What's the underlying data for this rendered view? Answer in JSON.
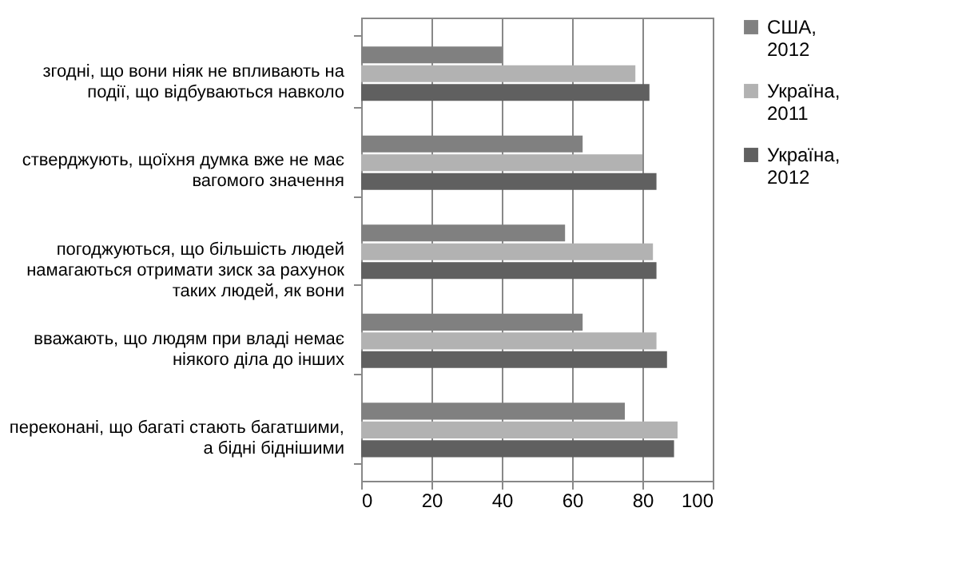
{
  "chart_data": {
    "type": "bar",
    "orientation": "horizontal",
    "categories": [
      "згодні, що вони ніяк не впливають на події, що відбуваються навколо",
      "стверджують,  щоїхня думка вже не має вагомого значення",
      "погоджуються,  що більшість людей намагаються отримати зиск за рахунок таких людей,  як вони",
      "вважають, що людям при владі немає ніякого діла до інших",
      "переконані, що багаті стають багатшими, а бідні біднішими"
    ],
    "series": [
      {
        "name": "США, 2012",
        "color": "#808080",
        "values": [
          40,
          63,
          58,
          63,
          75
        ]
      },
      {
        "name": "Україна, 2011",
        "color": "#b2b2b2",
        "values": [
          78,
          80,
          83,
          84,
          90
        ]
      },
      {
        "name": "Україна, 2012",
        "color": "#606060",
        "values": [
          82,
          84,
          84,
          87,
          89
        ]
      }
    ],
    "xlim": [
      0,
      100
    ],
    "xticks": [
      0,
      20,
      40,
      60,
      80,
      100
    ],
    "grid": "x",
    "legend": "right"
  }
}
